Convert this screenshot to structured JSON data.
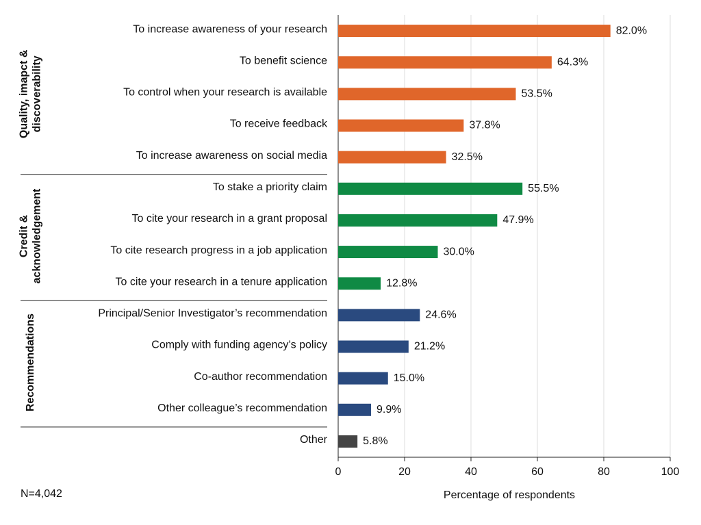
{
  "chart_data": {
    "type": "bar",
    "orientation": "horizontal",
    "groups": [
      {
        "label_lines": [
          "Quality, imapct &",
          "discoverability"
        ],
        "color": "#e0662a",
        "categories": [
          "To increase awareness of your research",
          "To benefit science",
          "To control when your research is available",
          "To receive feedback",
          "To increase awareness on social media"
        ],
        "values": [
          82.0,
          64.3,
          53.5,
          37.8,
          32.5
        ],
        "value_labels": [
          "82.0%",
          "64.3%",
          "53.5%",
          "37.8%",
          "32.5%"
        ]
      },
      {
        "label_lines": [
          "Credit &",
          "acknowledgement"
        ],
        "color": "#0f8a44",
        "categories": [
          "To stake a priority claim",
          "To cite your research in a grant proposal",
          "To cite research progress in a job application",
          "To cite your research in a tenure application"
        ],
        "values": [
          55.5,
          47.9,
          30.0,
          12.8
        ],
        "value_labels": [
          "55.5%",
          "47.9%",
          "30.0%",
          "12.8%"
        ]
      },
      {
        "label_lines": [
          "Recommendations"
        ],
        "color": "#2a4a7f",
        "categories": [
          "Principal/Senior Investigator’s recommendation",
          "Comply with funding agency’s policy",
          "Co-author recommendation",
          "Other colleague’s recommendation"
        ],
        "values": [
          24.6,
          21.2,
          15.0,
          9.9
        ],
        "value_labels": [
          "24.6%",
          "21.2%",
          "15.0%",
          "9.9%"
        ]
      },
      {
        "color": "#444444",
        "categories": [
          "Other"
        ],
        "values": [
          5.8
        ],
        "value_labels": [
          "5.8%"
        ]
      }
    ],
    "xlim": [
      0,
      100
    ],
    "xticks": [
      0,
      20,
      40,
      60,
      80,
      100
    ],
    "grid": true,
    "x_label": "Percentage of respondents",
    "note": "N=4,042"
  }
}
